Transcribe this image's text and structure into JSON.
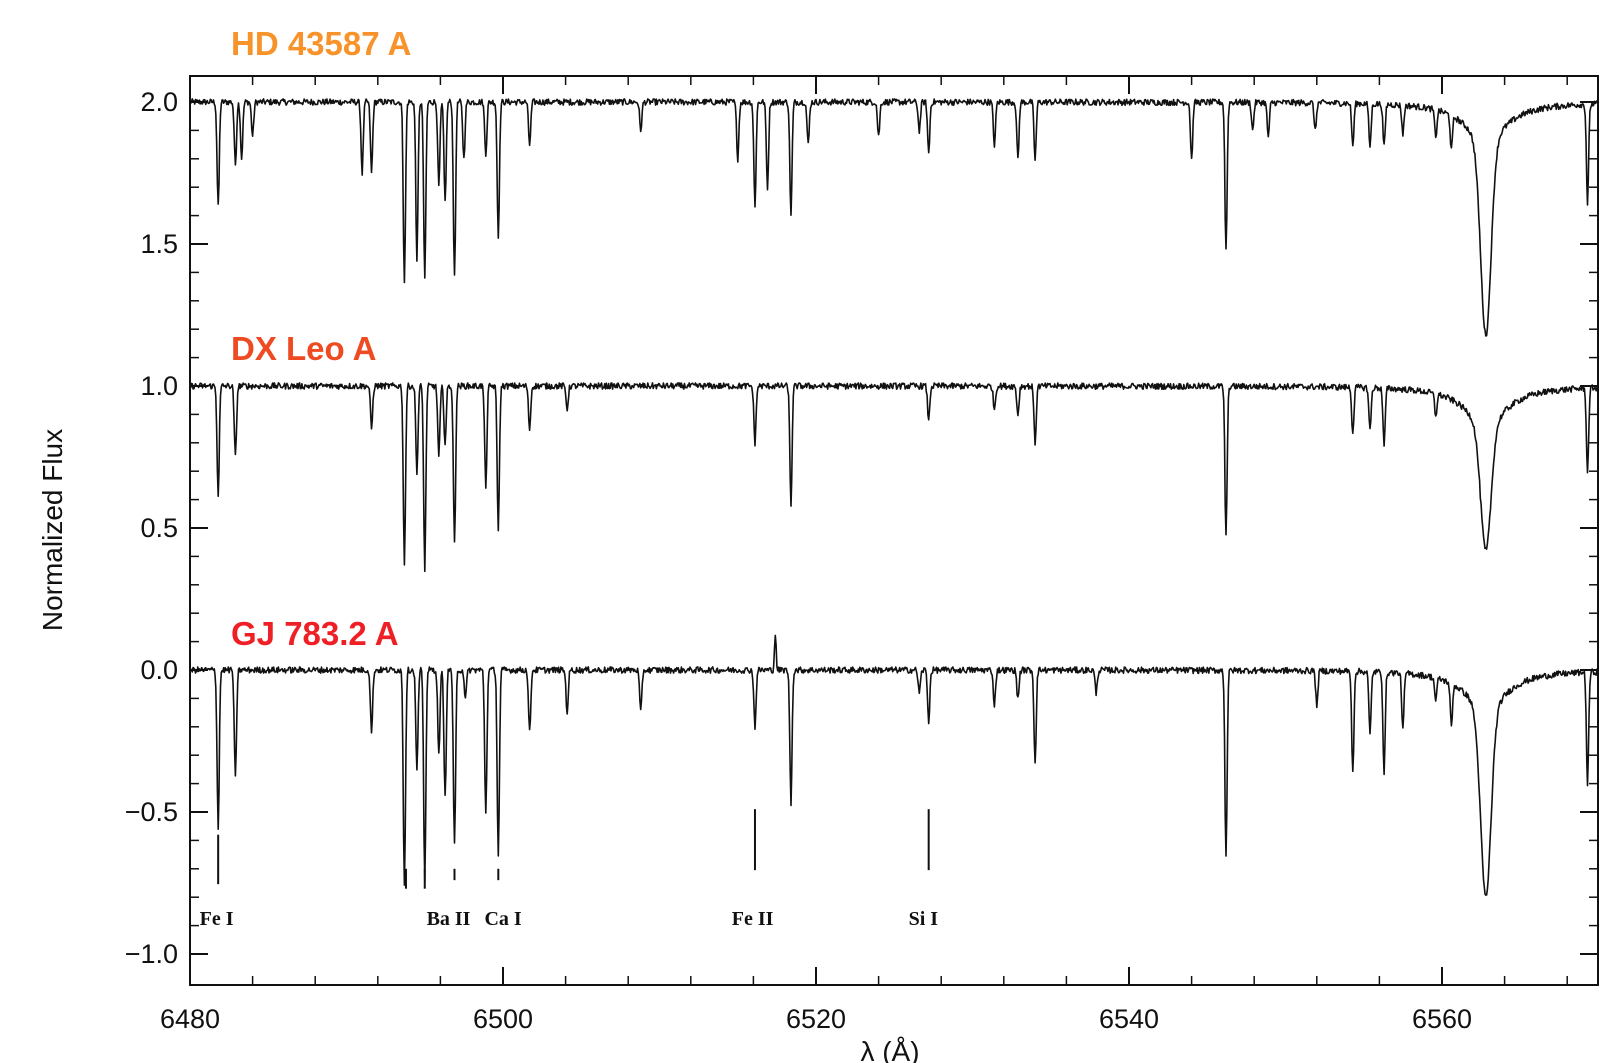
{
  "chart_data": {
    "type": "line",
    "title": "",
    "xlabel": "λ (Å)",
    "ylabel": "Normalized Flux",
    "xlim": [
      6480,
      6670
    ],
    "ylim": [
      -1.1,
      2.1
    ],
    "xticks": [
      6480,
      6500,
      6520,
      6540,
      6560
    ],
    "yticks": [
      -1.0,
      -0.5,
      0.0,
      0.5,
      1.0,
      1.5,
      2.0
    ],
    "xtick_labels": [
      "6480",
      "6500",
      "6520",
      "6540",
      "6560"
    ],
    "ytick_labels": [
      "−1.0",
      "−0.5",
      "0.0",
      "0.5",
      "1.0",
      "1.5",
      "2.0"
    ],
    "grid": false,
    "series": [
      {
        "name": "HD 43587 A",
        "color": "#f7932a",
        "offset": 2.0,
        "lines": [
          [
            6481.8,
            0.37
          ],
          [
            6482.9,
            0.22
          ],
          [
            6483.3,
            0.2
          ],
          [
            6484.0,
            0.12
          ],
          [
            6491.0,
            0.25
          ],
          [
            6491.6,
            0.25
          ],
          [
            6493.7,
            0.63
          ],
          [
            6494.5,
            0.55
          ],
          [
            6495.0,
            0.63
          ],
          [
            6495.9,
            0.3
          ],
          [
            6496.3,
            0.35
          ],
          [
            6496.9,
            0.62
          ],
          [
            6497.5,
            0.2
          ],
          [
            6498.9,
            0.18
          ],
          [
            6499.7,
            0.47
          ],
          [
            6501.7,
            0.15
          ],
          [
            6508.8,
            0.1
          ],
          [
            6515.0,
            0.2
          ],
          [
            6516.1,
            0.37
          ],
          [
            6516.9,
            0.3
          ],
          [
            6518.4,
            0.4
          ],
          [
            6519.5,
            0.15
          ],
          [
            6524.0,
            0.12
          ],
          [
            6526.6,
            0.1
          ],
          [
            6527.2,
            0.18
          ],
          [
            6531.4,
            0.15
          ],
          [
            6532.9,
            0.2
          ],
          [
            6534.0,
            0.2
          ],
          [
            6544.0,
            0.2
          ],
          [
            6546.2,
            0.52
          ],
          [
            6547.9,
            0.1
          ],
          [
            6548.9,
            0.12
          ],
          [
            6551.9,
            0.1
          ],
          [
            6554.3,
            0.15
          ],
          [
            6555.4,
            0.15
          ],
          [
            6556.3,
            0.15
          ],
          [
            6557.5,
            0.1
          ],
          [
            6559.6,
            0.1
          ],
          [
            6560.6,
            0.12
          ],
          [
            6569.3,
            0.35
          ]
        ],
        "halpha": 0.82
      },
      {
        "name": "DX Leo A",
        "color": "#ee4b22",
        "offset": 1.0,
        "lines": [
          [
            6481.8,
            0.38
          ],
          [
            6482.9,
            0.25
          ],
          [
            6491.6,
            0.15
          ],
          [
            6493.7,
            0.62
          ],
          [
            6494.5,
            0.3
          ],
          [
            6495.0,
            0.65
          ],
          [
            6495.9,
            0.25
          ],
          [
            6496.3,
            0.2
          ],
          [
            6496.9,
            0.55
          ],
          [
            6498.9,
            0.35
          ],
          [
            6499.7,
            0.5
          ],
          [
            6501.7,
            0.15
          ],
          [
            6504.1,
            0.08
          ],
          [
            6516.1,
            0.2
          ],
          [
            6518.4,
            0.42
          ],
          [
            6527.2,
            0.12
          ],
          [
            6531.4,
            0.08
          ],
          [
            6532.9,
            0.1
          ],
          [
            6534.0,
            0.2
          ],
          [
            6546.2,
            0.53
          ],
          [
            6554.3,
            0.16
          ],
          [
            6555.4,
            0.15
          ],
          [
            6556.3,
            0.2
          ],
          [
            6559.6,
            0.08
          ],
          [
            6569.3,
            0.3
          ]
        ],
        "halpha": 0.58
      },
      {
        "name": "GJ 783.2 A",
        "color": "#ee1f25",
        "offset": 0.0,
        "lines": [
          [
            6481.8,
            0.55
          ],
          [
            6482.9,
            0.38
          ],
          [
            6491.6,
            0.22
          ],
          [
            6493.7,
            0.75
          ],
          [
            6494.5,
            0.35
          ],
          [
            6495.0,
            0.75
          ],
          [
            6495.9,
            0.3
          ],
          [
            6496.3,
            0.45
          ],
          [
            6496.9,
            0.62
          ],
          [
            6497.6,
            0.1
          ],
          [
            6498.9,
            0.5
          ],
          [
            6499.7,
            0.65
          ],
          [
            6501.7,
            0.22
          ],
          [
            6504.1,
            0.15
          ],
          [
            6508.8,
            0.15
          ],
          [
            6516.1,
            0.2
          ],
          [
            6518.4,
            0.47
          ],
          [
            6526.6,
            0.08
          ],
          [
            6527.2,
            0.18
          ],
          [
            6531.4,
            0.12
          ],
          [
            6532.9,
            0.1
          ],
          [
            6534.0,
            0.32
          ],
          [
            6537.9,
            0.08
          ],
          [
            6546.2,
            0.65
          ],
          [
            6552.0,
            0.12
          ],
          [
            6554.3,
            0.35
          ],
          [
            6555.4,
            0.22
          ],
          [
            6556.3,
            0.35
          ],
          [
            6557.5,
            0.2
          ],
          [
            6559.6,
            0.08
          ],
          [
            6560.6,
            0.15
          ],
          [
            6569.3,
            0.4
          ]
        ],
        "halpha": 0.8,
        "emission": [
          6517.4,
          0.13
        ]
      }
    ],
    "halpha_center": 6562.8,
    "line_ids": [
      {
        "label": "Fe I",
        "wave": 6481.8
      },
      {
        "label": "Ba II",
        "wave": 6496.9
      },
      {
        "label": "Ca I",
        "wave": 6499.7
      },
      {
        "label": "Fe II",
        "wave": 6516.1
      },
      {
        "label": "Si I",
        "wave": 6527.2
      }
    ],
    "extra_markers": [
      6493.8,
      6495.0
    ]
  }
}
